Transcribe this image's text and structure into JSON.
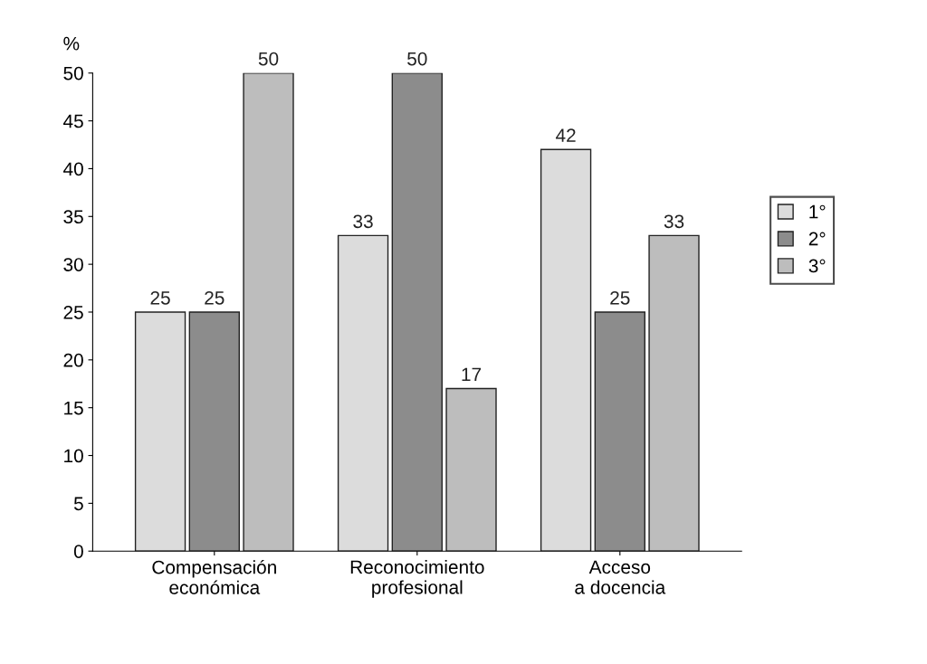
{
  "chart_data": {
    "type": "bar",
    "ylabel": "%",
    "categories": [
      "Compensación\neconómica",
      "Reconocimiento\nprofesional",
      "Acceso\na docencia"
    ],
    "series": [
      {
        "name": "1°",
        "color": "#dcdcdc",
        "values": [
          25,
          33,
          42
        ]
      },
      {
        "name": "2°",
        "color": "#8c8c8c",
        "values": [
          25,
          50,
          25
        ]
      },
      {
        "name": "3°",
        "color": "#bdbdbd",
        "values": [
          50,
          17,
          33
        ]
      }
    ],
    "ylim": [
      0,
      50
    ],
    "yticks": [
      0,
      5,
      10,
      15,
      20,
      25,
      30,
      35,
      40,
      45,
      50
    ],
    "data_labels": true,
    "legend": "right",
    "grid": false
  }
}
